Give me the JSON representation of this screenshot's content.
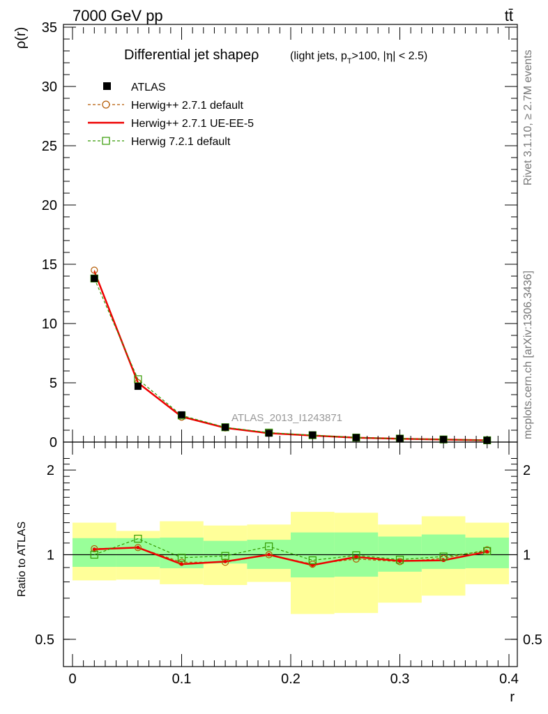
{
  "header": {
    "energy_label": "7000 GeV pp",
    "process_label": "tt̄"
  },
  "side_labels": {
    "rivet": "Rivet 3.1.10, ≥ 2.7M events",
    "mcplots": "mcplots.cern.ch [arXiv:1306.3436]"
  },
  "watermark": "ATLAS_2013_I1243871",
  "chart_data": [
    {
      "type": "line",
      "title": "Differential jet shapeρ",
      "subtitle": "(light jets, p_T>100, |η| < 2.5)",
      "ylabel": "ρ(r)",
      "xlabel": "",
      "xlim": [
        0,
        0.4
      ],
      "ylim": [
        0,
        35
      ],
      "yticks": [
        "0",
        "5",
        "10",
        "15",
        "20",
        "25",
        "30",
        "35"
      ],
      "legend_position": "top-left",
      "legend": [
        "ATLAS",
        "Herwig++ 2.7.1 default",
        "Herwig++ 2.7.1 UE-EE-5",
        "Herwig 7.2.1 default"
      ],
      "x": [
        0.02,
        0.06,
        0.1,
        0.14,
        0.18,
        0.22,
        0.26,
        0.3,
        0.34,
        0.38
      ],
      "series": [
        {
          "name": "ATLAS",
          "values": [
            13.8,
            4.7,
            2.3,
            1.25,
            0.75,
            0.6,
            0.38,
            0.3,
            0.22,
            0.15
          ],
          "color": "#000000",
          "marker": "square-filled"
        },
        {
          "name": "Herwig++ 2.7.1 default",
          "values": [
            14.5,
            5.0,
            2.1,
            1.2,
            0.75,
            0.55,
            0.37,
            0.28,
            0.21,
            0.15
          ],
          "color": "#b35900",
          "marker": "circle-open"
        },
        {
          "name": "Herwig++ 2.7.1 UE-EE-5",
          "values": [
            14.4,
            5.0,
            2.15,
            1.2,
            0.75,
            0.55,
            0.37,
            0.28,
            0.21,
            0.15
          ],
          "color": "#ee0000",
          "marker": "none"
        },
        {
          "name": "Herwig 7.2.1 default",
          "values": [
            13.8,
            5.3,
            2.25,
            1.25,
            0.8,
            0.58,
            0.38,
            0.29,
            0.22,
            0.15
          ],
          "color": "#339900",
          "marker": "square-open"
        }
      ]
    },
    {
      "type": "line",
      "ylabel": "Ratio to ATLAS",
      "xlabel": "r",
      "xlim": [
        0,
        0.4
      ],
      "ylim": [
        0.4,
        2.3
      ],
      "yscale": "log",
      "xticks": [
        "0",
        "0.1",
        "0.2",
        "0.3",
        "0.4"
      ],
      "yticks": [
        "0.5",
        "1",
        "2"
      ],
      "x": [
        0.02,
        0.06,
        0.1,
        0.14,
        0.18,
        0.22,
        0.26,
        0.3,
        0.34,
        0.38
      ],
      "bins": [
        [
          0.0,
          0.04
        ],
        [
          0.04,
          0.08
        ],
        [
          0.08,
          0.12
        ],
        [
          0.12,
          0.16
        ],
        [
          0.16,
          0.2
        ],
        [
          0.2,
          0.24
        ],
        [
          0.24,
          0.28
        ],
        [
          0.28,
          0.32
        ],
        [
          0.32,
          0.36
        ],
        [
          0.36,
          0.4
        ]
      ],
      "band_green": [
        [
          0.905,
          1.145
        ],
        [
          0.905,
          1.145
        ],
        [
          0.895,
          1.15
        ],
        [
          0.93,
          1.12
        ],
        [
          0.89,
          1.13
        ],
        [
          0.83,
          1.2
        ],
        [
          0.835,
          1.2
        ],
        [
          0.87,
          1.16
        ],
        [
          0.89,
          1.18
        ],
        [
          0.895,
          1.15
        ]
      ],
      "band_yellow": [
        [
          0.81,
          1.3
        ],
        [
          0.815,
          1.215
        ],
        [
          0.785,
          1.315
        ],
        [
          0.78,
          1.27
        ],
        [
          0.8,
          1.28
        ],
        [
          0.615,
          1.42
        ],
        [
          0.62,
          1.41
        ],
        [
          0.675,
          1.28
        ],
        [
          0.715,
          1.37
        ],
        [
          0.785,
          1.3
        ]
      ],
      "series": [
        {
          "name": "Herwig++ 2.7.1 default",
          "values": [
            1.05,
            1.06,
            0.94,
            0.94,
            1.0,
            0.925,
            0.965,
            0.945,
            0.97,
            1.04
          ],
          "color": "#b35900",
          "marker": "circle-open"
        },
        {
          "name": "Herwig++ 2.7.1 UE-EE-5",
          "values": [
            1.045,
            1.06,
            0.925,
            0.945,
            1.0,
            0.918,
            0.982,
            0.95,
            0.955,
            1.025
          ],
          "color": "#ee0000",
          "marker": "none"
        },
        {
          "name": "Herwig 7.2.1 default",
          "values": [
            1.0,
            1.14,
            0.975,
            0.99,
            1.07,
            0.955,
            0.995,
            0.96,
            0.985,
            1.03
          ],
          "color": "#339900",
          "marker": "square-open"
        }
      ]
    }
  ]
}
